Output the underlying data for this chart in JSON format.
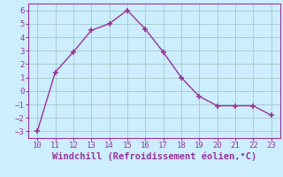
{
  "x": [
    10,
    11,
    12,
    13,
    14,
    15,
    16,
    17,
    18,
    19,
    20,
    21,
    22,
    23
  ],
  "y": [
    -3.0,
    1.4,
    2.9,
    4.5,
    5.0,
    6.0,
    4.6,
    2.9,
    1.0,
    -0.4,
    -1.1,
    -1.1,
    -1.1,
    -1.8
  ],
  "line_color": "#993399",
  "marker": "+",
  "xlabel": "Windchill (Refroidissement éolien,°C)",
  "xlim": [
    9.5,
    23.5
  ],
  "ylim": [
    -3.5,
    6.5
  ],
  "xticks": [
    10,
    11,
    12,
    13,
    14,
    15,
    16,
    17,
    18,
    19,
    20,
    21,
    22,
    23
  ],
  "yticks": [
    -3,
    -2,
    -1,
    0,
    1,
    2,
    3,
    4,
    5,
    6
  ],
  "bg_color": "#cceeff",
  "grid_color": "#aacccc",
  "xlabel_fontsize": 7.5,
  "tick_fontsize": 6.5,
  "marker_size": 4,
  "linewidth": 1.0
}
